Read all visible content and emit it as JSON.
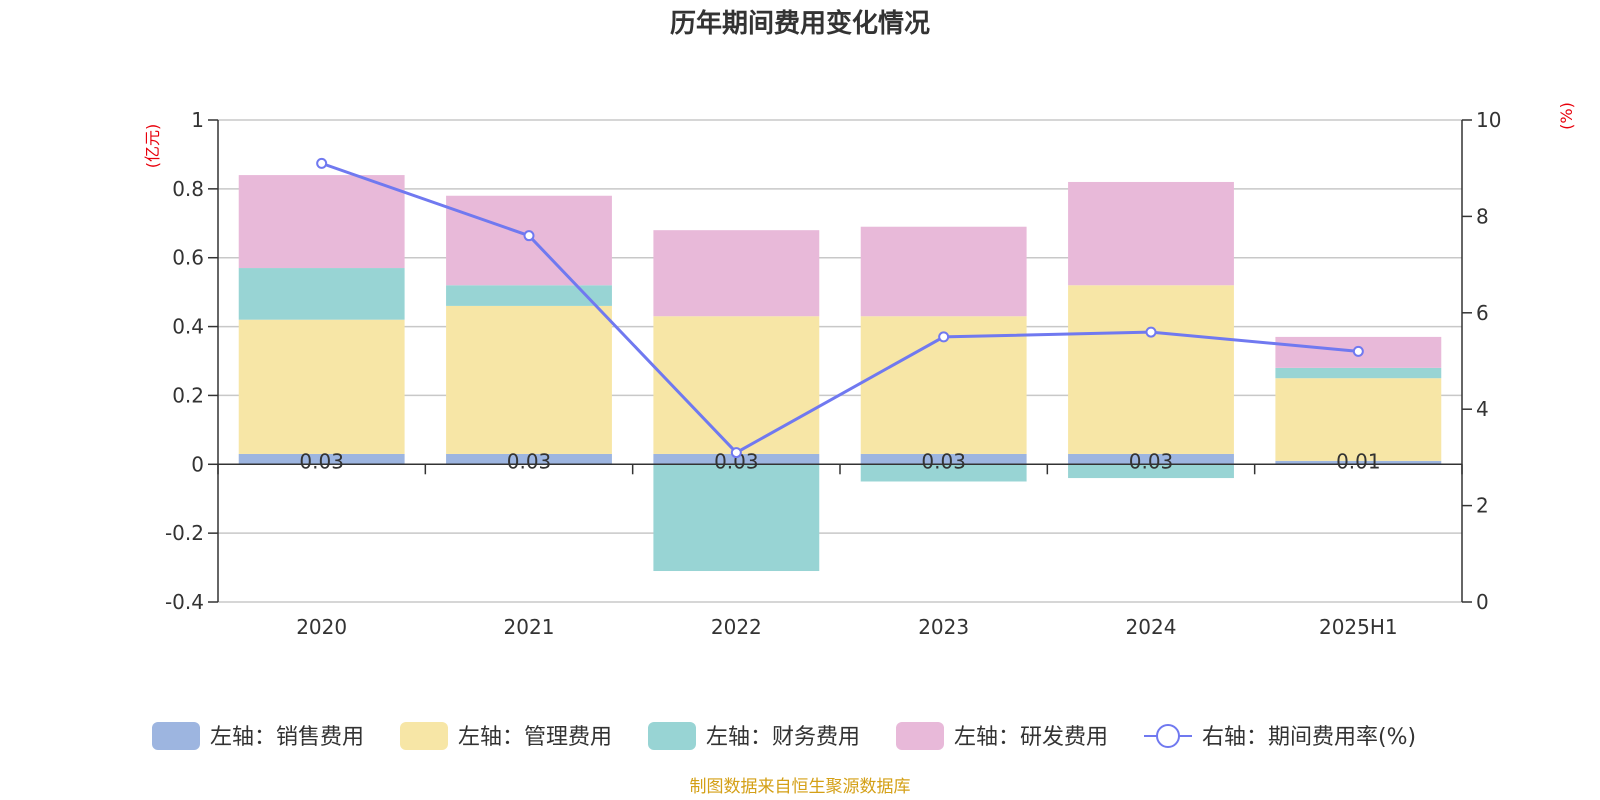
{
  "chart_data": {
    "type": "bar",
    "title": "历年期间费用变化情况",
    "categories": [
      "2020",
      "2021",
      "2022",
      "2023",
      "2024",
      "2025H1"
    ],
    "left_axis": {
      "unit": "(亿元)",
      "ylim": [
        -0.4,
        1
      ],
      "ticks": [
        "1",
        "0.8",
        "0.6",
        "0.4",
        "0.2",
        "0",
        "-0.2",
        "-0.4"
      ]
    },
    "right_axis": {
      "unit": "(%)",
      "ylim": [
        0,
        10
      ],
      "ticks": [
        "10",
        "8",
        "6",
        "4",
        "2",
        "0"
      ]
    },
    "series": [
      {
        "name": "左轴：销售费用",
        "axis": "left",
        "kind": "bar",
        "color": "#9db5e0",
        "values": [
          0.03,
          0.03,
          0.03,
          0.03,
          0.03,
          0.01
        ]
      },
      {
        "name": "左轴：管理费用",
        "axis": "left",
        "kind": "bar",
        "color": "#f7e6a6",
        "values": [
          0.39,
          0.43,
          0.4,
          0.4,
          0.49,
          0.24
        ]
      },
      {
        "name": "左轴：财务费用",
        "axis": "left",
        "kind": "bar",
        "color": "#98d4d4",
        "values": [
          0.15,
          0.06,
          -0.31,
          -0.05,
          -0.04,
          0.03
        ]
      },
      {
        "name": "左轴：研发费用",
        "axis": "left",
        "kind": "bar",
        "color": "#e8b9d9",
        "values": [
          0.27,
          0.26,
          0.25,
          0.26,
          0.3,
          0.09
        ]
      },
      {
        "name": "右轴：期间费用率(%)",
        "axis": "right",
        "kind": "line",
        "color": "#7079f0",
        "values": [
          9.1,
          7.6,
          3.1,
          5.5,
          5.6,
          5.2
        ]
      }
    ],
    "data_labels": [
      "0.03",
      "0.03",
      "0.03",
      "0.03",
      "0.03",
      "0.01"
    ],
    "grid": true,
    "legend_position": "bottom"
  },
  "source_text": "制图数据来自恒生聚源数据库"
}
